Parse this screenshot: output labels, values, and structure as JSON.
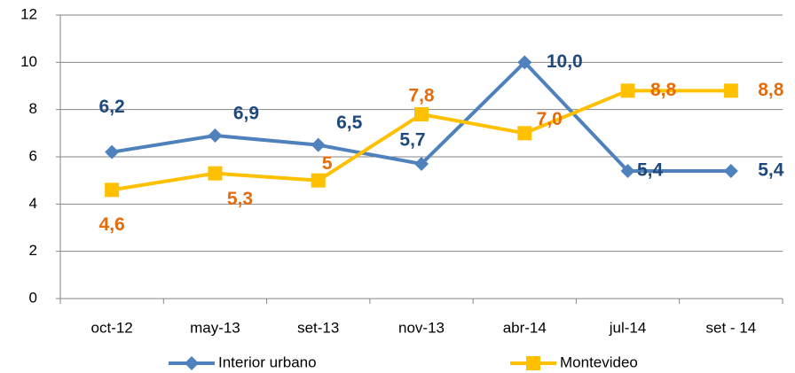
{
  "chart_data": {
    "type": "line",
    "categories": [
      "oct-12",
      "may-13",
      "set-13",
      "nov-13",
      "abr-14",
      "jul-14",
      "set - 14"
    ],
    "series": [
      {
        "name": "Interior urbano",
        "color": "#4F81BD",
        "label_color": "#1F497D",
        "marker": "diamond",
        "values": [
          6.2,
          6.9,
          6.5,
          5.7,
          10.0,
          5.4,
          5.4
        ],
        "value_labels": [
          "6,2",
          "6,9",
          "6,5",
          "5,7",
          "10,0",
          "5,4",
          "5,4"
        ]
      },
      {
        "name": "Montevideo",
        "color": "#FFC000",
        "label_color": "#E46C0A",
        "marker": "square",
        "values": [
          4.6,
          5.3,
          5,
          7.8,
          7.0,
          8.8,
          8.8
        ],
        "value_labels": [
          "4,6",
          "5,3",
          "5",
          "7,8",
          "7,0",
          "8,8",
          "8,8"
        ]
      }
    ],
    "ylim": [
      0,
      12
    ],
    "yticks": [
      0,
      2,
      4,
      6,
      8,
      10,
      12
    ],
    "grid": true,
    "legend": "bottom"
  }
}
